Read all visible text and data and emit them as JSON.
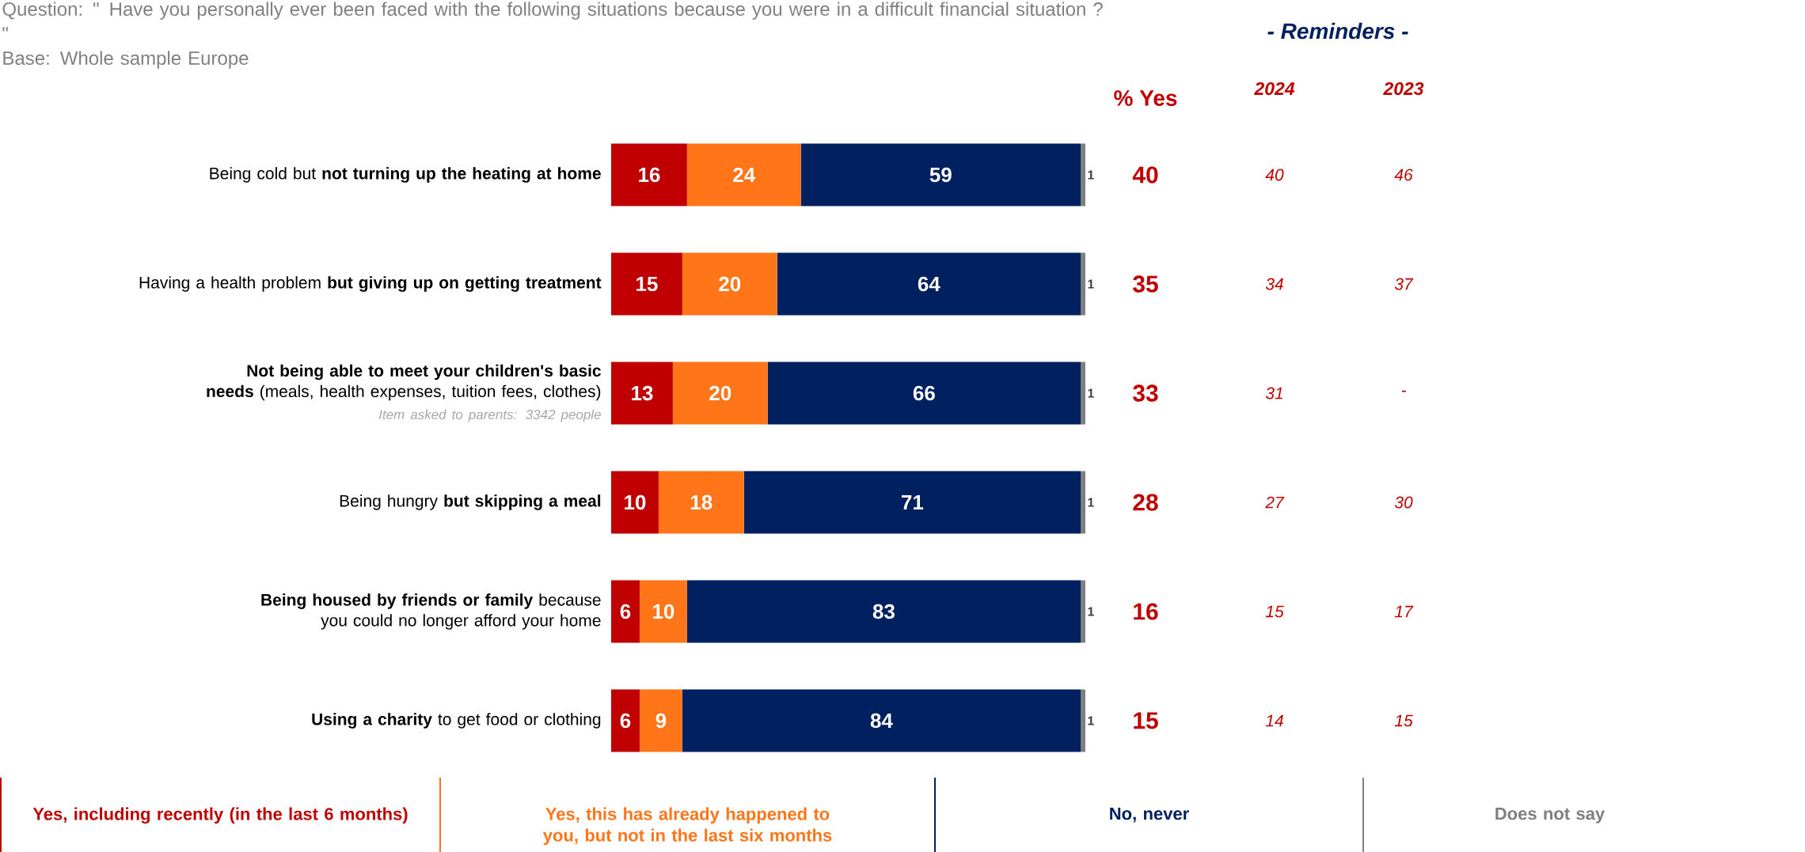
{
  "chart_data": {
    "type": "bar",
    "orientation": "horizontal",
    "stacked": true,
    "title": "Question: \" Have you personally ever been faced with the following situations because you were in a difficult financial situation ? \"",
    "subtitle": "Base: Whole sample Europe",
    "categories": [
      "Being cold but **not turning up the heating at home**",
      "Having a health problem **but giving up on getting treatment**",
      "**Not being able to meet your children's basic needs** (meals, health expenses, tuition fees, clothes)",
      "Being hungry **but skipping a meal**",
      "**Being housed by friends or family** because you could no longer afford your home",
      "**Using a charity** to get food or clothing"
    ],
    "series": [
      {
        "name": "Yes, including recently (in the last 6 months)",
        "color": "#c00000",
        "values": [
          16,
          15,
          13,
          10,
          6,
          6
        ]
      },
      {
        "name": "Yes, this has already happened to you, but not in the last six months",
        "color": "#ff7518",
        "values": [
          24,
          20,
          20,
          18,
          10,
          9
        ]
      },
      {
        "name": "No, never",
        "color": "#002060",
        "values": [
          59,
          64,
          66,
          71,
          83,
          84
        ]
      },
      {
        "name": "Does not say",
        "color": "#7f7f7f",
        "values": [
          1,
          1,
          1,
          1,
          1,
          1
        ]
      }
    ],
    "xlim": [
      0,
      100
    ],
    "tick_labels": "y",
    "data_labels": true,
    "legend": "bottom",
    "annotations": [
      "% Yes",
      "- Reminders -",
      "2024",
      "2023",
      "40",
      "40",
      "46",
      "35",
      "34",
      "37",
      "33",
      "31",
      "-",
      "28",
      "27",
      "30",
      "16",
      "15",
      "17",
      "15",
      "14",
      "15",
      "Item asked to parents: 3342 people"
    ]
  }
}
